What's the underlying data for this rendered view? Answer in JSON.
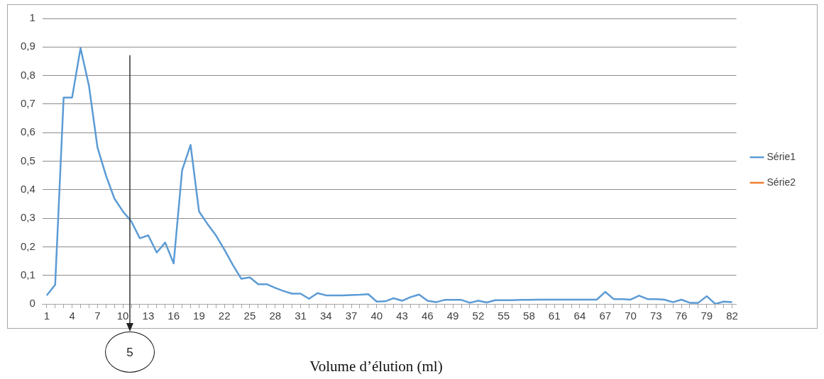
{
  "chart_data": {
    "type": "line",
    "xlabel": "Volume d’élution (ml)",
    "categories": [
      "1",
      null,
      null,
      "4",
      null,
      null,
      "7",
      null,
      null,
      "10",
      null,
      null,
      "13",
      null,
      null,
      "16",
      null,
      null,
      "19",
      null,
      null,
      "22",
      null,
      null,
      "25",
      null,
      null,
      "28",
      null,
      null,
      "31",
      null,
      null,
      "34",
      null,
      null,
      "37",
      null,
      null,
      "40",
      null,
      null,
      "43",
      null,
      null,
      "46",
      null,
      null,
      "49",
      null,
      null,
      "52",
      null,
      null,
      "55",
      null,
      null,
      "58",
      null,
      null,
      "61",
      null,
      null,
      "64",
      null,
      null,
      "67",
      null,
      null,
      "70",
      null,
      null,
      "73",
      null,
      null,
      "76",
      null,
      null,
      "79",
      null,
      null,
      "82"
    ],
    "series": [
      {
        "name": "Série1",
        "color": "#5b9bd5",
        "values": [
          0.03,
          0.067,
          0.723,
          0.723,
          0.896,
          0.763,
          0.548,
          0.45,
          0.369,
          0.324,
          0.289,
          0.23,
          0.24,
          0.18,
          0.215,
          0.142,
          0.468,
          0.557,
          0.324,
          0.28,
          0.24,
          0.19,
          0.136,
          0.088,
          0.093,
          0.069,
          0.069,
          0.056,
          0.045,
          0.036,
          0.036,
          0.018,
          0.038,
          0.03,
          0.03,
          0.03,
          0.031,
          0.032,
          0.034,
          0.008,
          0.009,
          0.02,
          0.011,
          0.024,
          0.033,
          0.011,
          0.006,
          0.014,
          0.014,
          0.014,
          0.004,
          0.011,
          0.005,
          0.013,
          0.013,
          0.013,
          0.014,
          0.014,
          0.015,
          0.015,
          0.015,
          0.015,
          0.015,
          0.015,
          0.015,
          0.015,
          0.042,
          0.017,
          0.017,
          0.015,
          0.029,
          0.017,
          0.017,
          0.015,
          0.006,
          0.015,
          0.004,
          0.004,
          0.027,
          0,
          0.008,
          0.006
        ]
      },
      {
        "name": "Série2",
        "color": "#ed7d31",
        "values": [
          null,
          null,
          null,
          null,
          null,
          null,
          null,
          null,
          null,
          null,
          null,
          null,
          null,
          null,
          null,
          null,
          null,
          null,
          null,
          null,
          null,
          null,
          null,
          null,
          null,
          null,
          null,
          null,
          null,
          null,
          null,
          null,
          null,
          null,
          null,
          null,
          null,
          null,
          null,
          null,
          null,
          null,
          null,
          null,
          null,
          null,
          null,
          null,
          null,
          null,
          null,
          null,
          null,
          null,
          null,
          null,
          null,
          null,
          null,
          null,
          null,
          null,
          null,
          null,
          null,
          null,
          null,
          null,
          null,
          null,
          null,
          null,
          null,
          null,
          null,
          null,
          null,
          null,
          null,
          null,
          null,
          null
        ]
      }
    ],
    "ylim": [
      0,
      1
    ],
    "yticks": [
      0,
      {
        "value": 0.1,
        "label": "0,1"
      },
      {
        "value": 0.2,
        "label": "0,2"
      },
      {
        "value": 0.3,
        "label": "0,3"
      },
      {
        "value": 0.4,
        "label": "0,4"
      },
      {
        "value": 0.5,
        "label": "0,5"
      },
      {
        "value": 0.6,
        "label": "0,6"
      },
      {
        "value": 0.7,
        "label": "0,7"
      },
      {
        "value": 0.8,
        "label": "0,8"
      },
      {
        "value": 0.9,
        "label": "0,9"
      },
      1
    ],
    "grid": "y",
    "legend": "right",
    "annotations": [
      "5"
    ]
  }
}
